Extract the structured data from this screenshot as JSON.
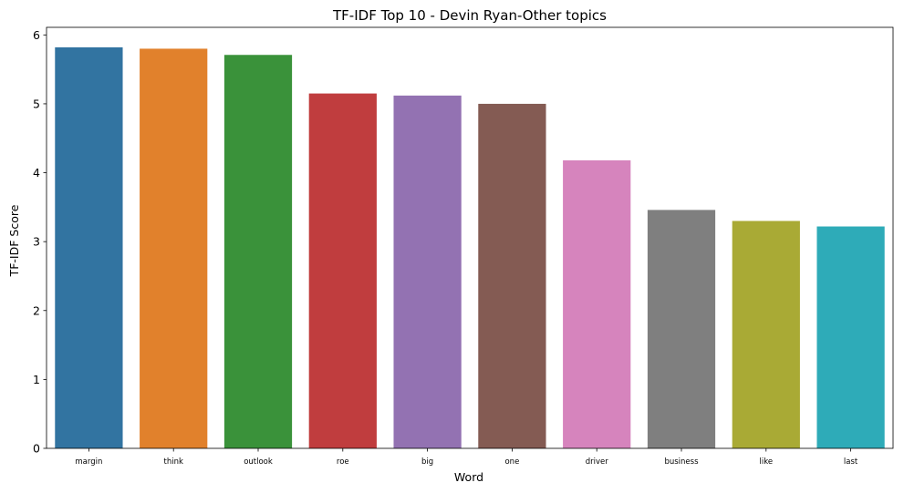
{
  "chart_data": {
    "type": "bar",
    "title": "TF-IDF Top 10 - Devin Ryan-Other topics",
    "xlabel": "Word",
    "ylabel": "TF-IDF Score",
    "categories": [
      "margin",
      "think",
      "outlook",
      "roe",
      "big",
      "one",
      "driver",
      "business",
      "like",
      "last"
    ],
    "values": [
      5.82,
      5.8,
      5.71,
      5.15,
      5.12,
      5.0,
      4.18,
      3.46,
      3.3,
      3.22
    ],
    "colors": [
      "#3274a1",
      "#e1812c",
      "#3a923a",
      "#c03d3e",
      "#9372b2",
      "#845b53",
      "#d684bd",
      "#7f7f7f",
      "#a9aa35",
      "#2eabb8"
    ],
    "ylim": [
      0,
      6.11
    ],
    "yticks": [
      0,
      1,
      2,
      3,
      4,
      5,
      6
    ],
    "grid": false,
    "legend": "none"
  }
}
